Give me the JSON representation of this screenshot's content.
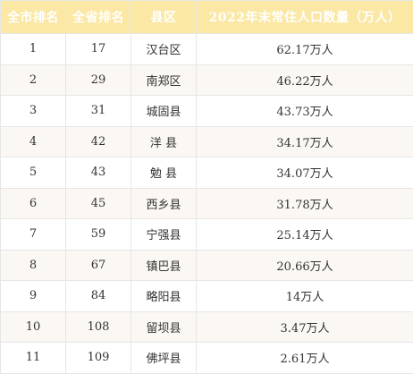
{
  "table": {
    "headers": [
      "全市排名",
      "全省排名",
      "县区",
      "2022年末常住人口数量（万人）"
    ],
    "rows": [
      [
        "1",
        "17",
        "汉台区",
        "62.17万人"
      ],
      [
        "2",
        "29",
        "南郑区",
        "46.22万人"
      ],
      [
        "3",
        "31",
        "城固县",
        "43.73万人"
      ],
      [
        "4",
        "42",
        "洋 县",
        "34.17万人"
      ],
      [
        "5",
        "43",
        "勉 县",
        "34.07万人"
      ],
      [
        "6",
        "45",
        "西乡县",
        "31.78万人"
      ],
      [
        "7",
        "59",
        "宁强县",
        "25.14万人"
      ],
      [
        "8",
        "67",
        "镇巴县",
        "20.66万人"
      ],
      [
        "9",
        "84",
        "略阳县",
        "14万人"
      ],
      [
        "10",
        "108",
        "留坝县",
        "3.47万人"
      ],
      [
        "11",
        "109",
        "佛坪县",
        "2.61万人"
      ]
    ]
  },
  "colors": {
    "header_background": "#fbe8a4",
    "header_text": "#ffffff",
    "stripe_background": "#fbf8f3",
    "border": "#e6e6e6"
  }
}
